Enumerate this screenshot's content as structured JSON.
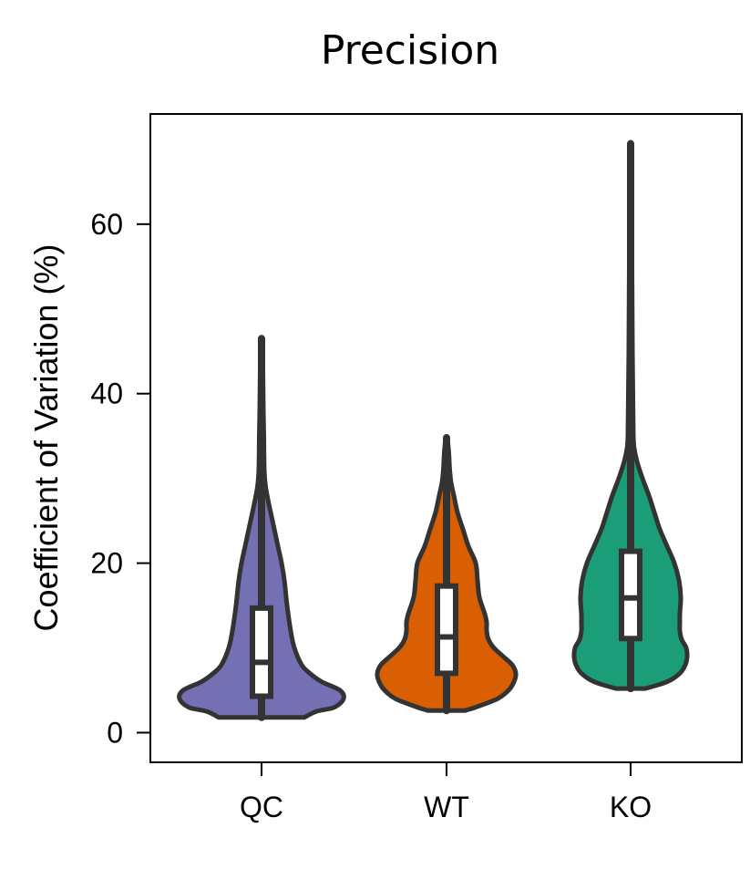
{
  "chart_data": {
    "type": "violin",
    "title": "Precision",
    "xlabel": "",
    "ylabel": "Coefficient of Variation (%)",
    "ylim": [
      -3.5,
      73
    ],
    "yticks": [
      0,
      20,
      40,
      60
    ],
    "grid": false,
    "categories": [
      "QC",
      "WT",
      "KO"
    ],
    "colors": {
      "QC": "#7570b3",
      "WT": "#d95f02",
      "KO": "#1b9e77",
      "outline": "#333333"
    },
    "series": [
      {
        "name": "QC",
        "min": 1.8,
        "q1": 4.3,
        "median": 8.3,
        "q3": 14.7,
        "max": 46.5,
        "density": [
          [
            1.8,
            0.47
          ],
          [
            2.5,
            0.6
          ],
          [
            3.0,
            0.8
          ],
          [
            4.0,
            0.9
          ],
          [
            5.0,
            0.86
          ],
          [
            6.0,
            0.66
          ],
          [
            7.0,
            0.53
          ],
          [
            8.0,
            0.44
          ],
          [
            10.0,
            0.36
          ],
          [
            12.0,
            0.32
          ],
          [
            15.0,
            0.28
          ],
          [
            18.0,
            0.25
          ],
          [
            20.0,
            0.22
          ],
          [
            22.0,
            0.18
          ],
          [
            25.0,
            0.12
          ],
          [
            27.0,
            0.08
          ],
          [
            29.0,
            0.045
          ],
          [
            31.0,
            0.03
          ],
          [
            35.0,
            0.025
          ],
          [
            38.0,
            0.02
          ],
          [
            42.0,
            0.016
          ],
          [
            46.5,
            0.01
          ]
        ]
      },
      {
        "name": "WT",
        "min": 2.6,
        "q1": 7.0,
        "median": 11.3,
        "q3": 17.3,
        "max": 34.8,
        "density": [
          [
            2.6,
            0.2
          ],
          [
            3.0,
            0.32
          ],
          [
            4.0,
            0.56
          ],
          [
            5.0,
            0.68
          ],
          [
            6.0,
            0.74
          ],
          [
            7.0,
            0.76
          ],
          [
            8.0,
            0.72
          ],
          [
            9.0,
            0.62
          ],
          [
            10.0,
            0.52
          ],
          [
            11.0,
            0.46
          ],
          [
            12.0,
            0.44
          ],
          [
            13.0,
            0.44
          ],
          [
            14.0,
            0.42
          ],
          [
            16.0,
            0.36
          ],
          [
            18.0,
            0.34
          ],
          [
            20.0,
            0.32
          ],
          [
            22.0,
            0.24
          ],
          [
            24.0,
            0.18
          ],
          [
            26.0,
            0.12
          ],
          [
            28.0,
            0.08
          ],
          [
            29.5,
            0.05
          ],
          [
            31.0,
            0.035
          ],
          [
            33.0,
            0.025
          ],
          [
            34.8,
            0.01
          ]
        ]
      },
      {
        "name": "KO",
        "min": 5.2,
        "q1": 11.1,
        "median": 15.9,
        "q3": 21.4,
        "max": 69.5,
        "density": [
          [
            5.2,
            0.16
          ],
          [
            6.0,
            0.4
          ],
          [
            7.0,
            0.54
          ],
          [
            8.0,
            0.6
          ],
          [
            9.0,
            0.62
          ],
          [
            10.0,
            0.61
          ],
          [
            11.0,
            0.56
          ],
          [
            12.0,
            0.54
          ],
          [
            13.0,
            0.54
          ],
          [
            14.0,
            0.54
          ],
          [
            16.0,
            0.55
          ],
          [
            18.0,
            0.53
          ],
          [
            20.0,
            0.48
          ],
          [
            22.0,
            0.4
          ],
          [
            24.0,
            0.32
          ],
          [
            26.0,
            0.26
          ],
          [
            28.0,
            0.2
          ],
          [
            30.0,
            0.13
          ],
          [
            32.0,
            0.07
          ],
          [
            33.5,
            0.04
          ],
          [
            35.0,
            0.03
          ],
          [
            40.0,
            0.025
          ],
          [
            45.0,
            0.02
          ],
          [
            55.0,
            0.015
          ],
          [
            69.5,
            0.012
          ]
        ]
      }
    ]
  }
}
